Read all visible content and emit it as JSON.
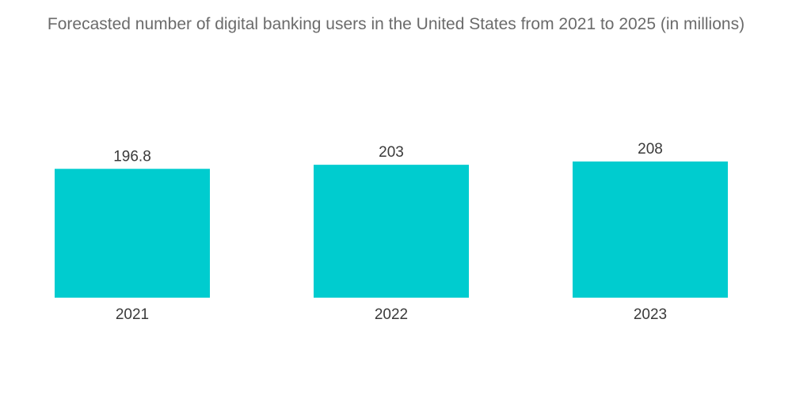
{
  "chart_data": {
    "type": "bar",
    "title": "Forecasted number of digital banking users in the United States from 2021 to 2025 (in millions)",
    "categories": [
      "2021",
      "2022",
      "2023"
    ],
    "values": [
      196.8,
      203,
      208
    ],
    "value_labels": [
      "196.8",
      "203",
      "208"
    ],
    "xlabel": "",
    "ylabel": "",
    "ylim": [
      0,
      208
    ],
    "grid": false,
    "legend": "none",
    "bar_color": "#00cccf"
  }
}
